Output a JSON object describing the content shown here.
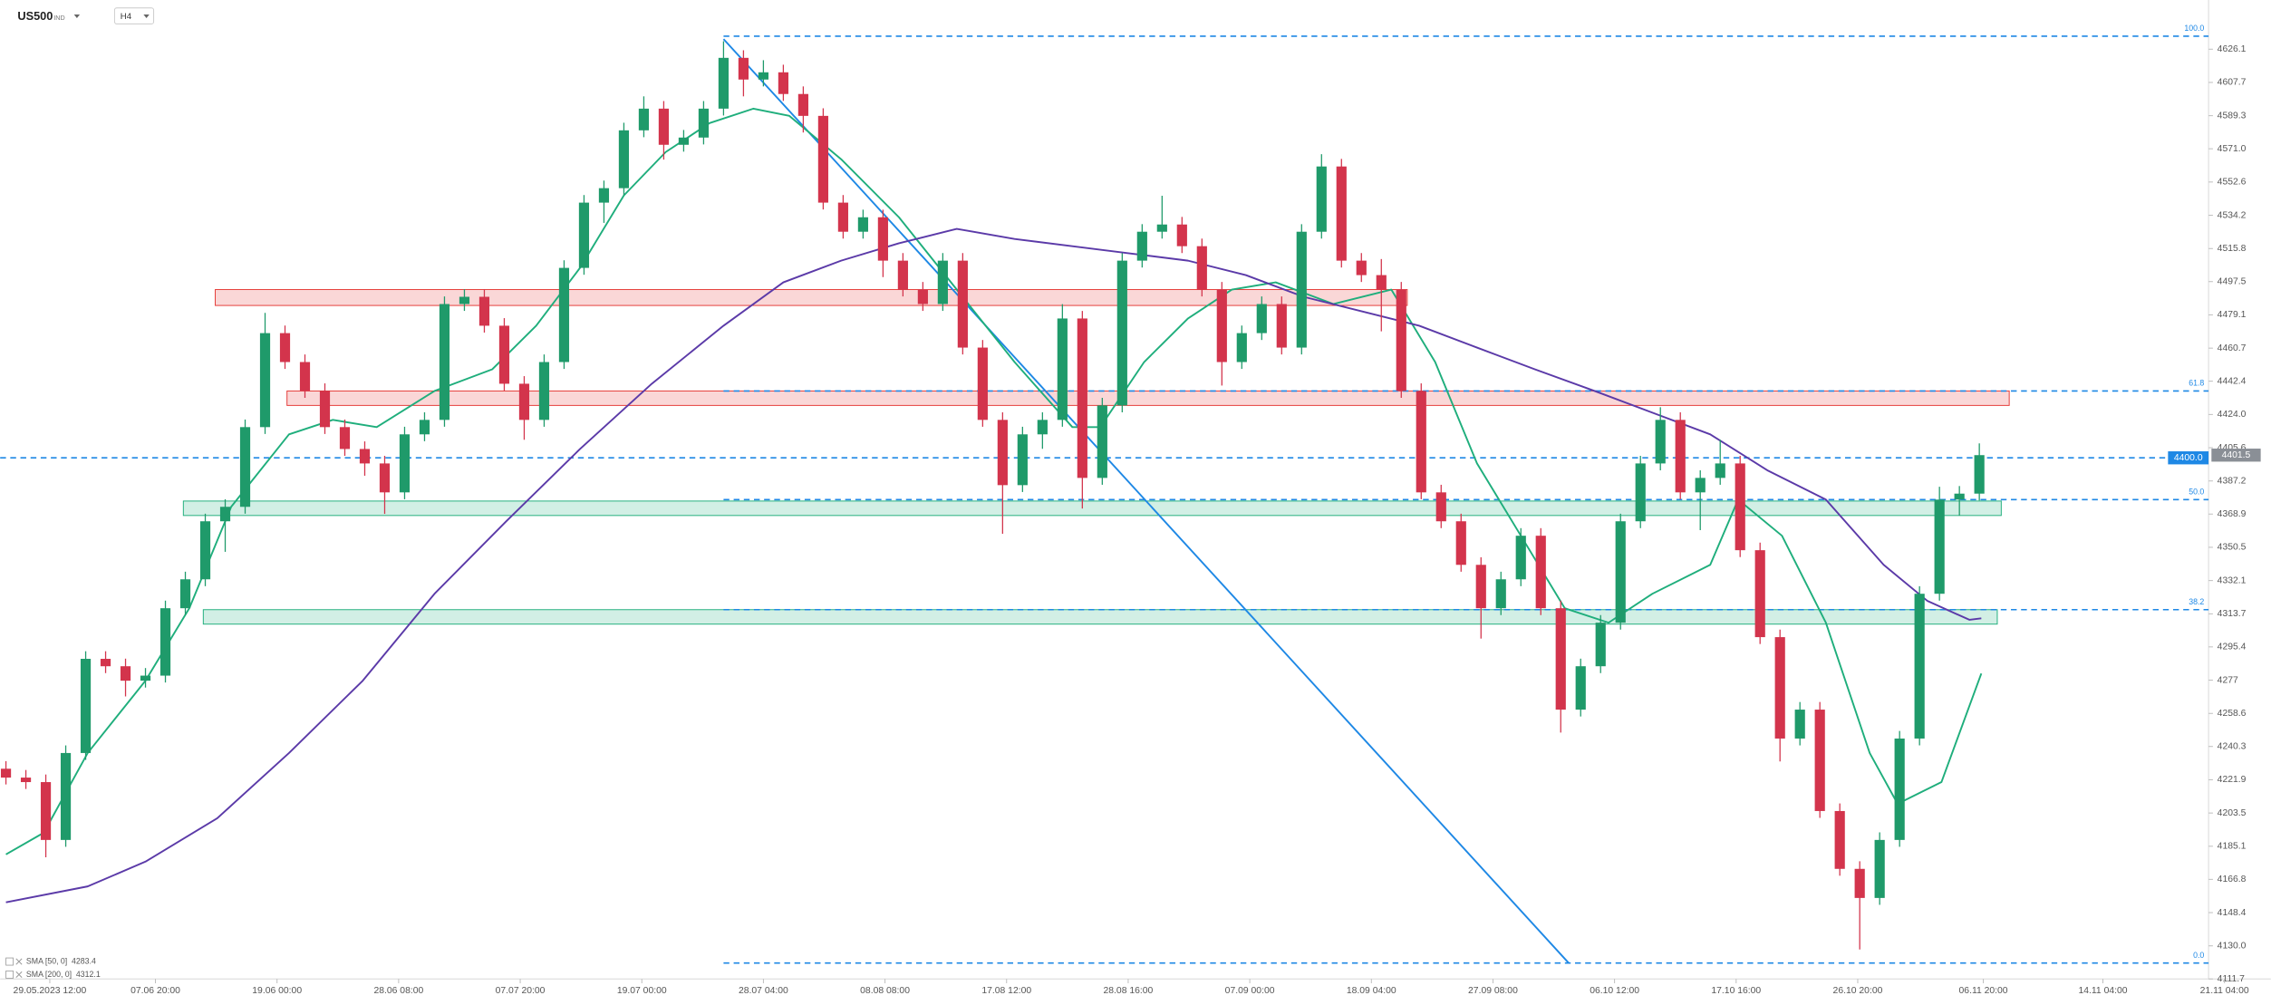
{
  "chart_data": {
    "type": "candlestick",
    "title": "US500",
    "title_suffix": "IND",
    "timeframe": "H4",
    "up_color": "#1f9a6a",
    "down_color": "#d3344c",
    "xlim": [
      -0.29,
      110.5
    ],
    "ylim": [
      4111.7,
      4649.3
    ],
    "yticks": [
      4626.1,
      4607.7,
      4589.3,
      {
        "value": 4571,
        "label": "4571.0"
      },
      4552.6,
      4534.2,
      4515.8,
      4497.5,
      4479.1,
      4460.7,
      4442.4,
      {
        "value": 4424,
        "label": "4424.0"
      },
      4405.6,
      4387.2,
      4368.9,
      4350.5,
      4332.1,
      4313.7,
      4295.4,
      4277,
      4258.6,
      4240.3,
      4221.9,
      4203.5,
      4185.1,
      4166.8,
      4148.4,
      {
        "value": 4130,
        "label": "4130.0"
      },
      4111.7
    ],
    "xticks": [
      {
        "value": 2.2,
        "label": "29.05.2023 12:00"
      },
      {
        "value": 7.5,
        "label": "07.06 20:00"
      },
      {
        "value": 13.6,
        "label": "19.06 00:00"
      },
      {
        "value": 19.7,
        "label": "28.06 08:00"
      },
      {
        "value": 25.8,
        "label": "07.07 20:00"
      },
      {
        "value": 31.9,
        "label": "19.07 00:00"
      },
      {
        "value": 38.0,
        "label": "28.07 04:00"
      },
      {
        "value": 44.1,
        "label": "08.08 08:00"
      },
      {
        "value": 50.2,
        "label": "17.08 12:00"
      },
      {
        "value": 56.3,
        "label": "28.08 16:00"
      },
      {
        "value": 62.4,
        "label": "07.09 00:00"
      },
      {
        "value": 68.5,
        "label": "18.09 04:00"
      },
      {
        "value": 74.6,
        "label": "27.09 08:00"
      },
      {
        "value": 80.7,
        "label": "06.10 12:00"
      },
      {
        "value": 86.8,
        "label": "17.10 16:00"
      },
      {
        "value": 92.9,
        "label": "26.10 20:00"
      },
      {
        "value": 99.2,
        "label": "06.11 20:00"
      },
      {
        "value": 105.2,
        "label": "14.11 04:00"
      },
      {
        "value": 111.3,
        "label": "21.11 04:00"
      }
    ],
    "open": [
      4228.0,
      4223.1,
      4220.6,
      4188.6,
      4236.7,
      4288.8,
      4284.7,
      4276.7,
      4279.5,
      4316.8,
      4332.8,
      4364.9,
      4372.9,
      4417.0,
      4469.0,
      4453.0,
      4437.0,
      4417.0,
      4404.9,
      4396.9,
      4380.9,
      4413.0,
      4421.0,
      4485.1,
      4489.1,
      4473.1,
      4441.0,
      4421.0,
      4453.0,
      4505.1,
      4541.2,
      4549.2,
      4581.2,
      4593.2,
      4573.2,
      4577.2,
      4593.2,
      4621.3,
      4609.3,
      4613.3,
      4601.3,
      4589.2,
      4541.2,
      4525.1,
      4533.1,
      4509.1,
      4493.1,
      4485.1,
      4509.1,
      4461.0,
      4421.0,
      4384.9,
      4413.0,
      4421.0,
      4477.1,
      4388.9,
      4429.0,
      4509.1,
      4525.1,
      4529.1,
      4517.1,
      4493.1,
      4453.0,
      4469.0,
      4485.1,
      4461.0,
      4525.1,
      4561.2,
      4509.1,
      4501.1,
      4493.1,
      4437.0,
      4380.9,
      4364.9,
      4340.8,
      4316.8,
      4332.8,
      4356.9,
      4316.8,
      4260.7,
      4284.7,
      4308.8,
      4364.9,
      4396.9,
      4421.0,
      4380.9,
      4388.9,
      4396.9,
      4348.9,
      4300.8,
      4244.7,
      4260.7,
      4204.6,
      4172.6,
      4156.5,
      4188.6,
      4244.7,
      4324.8,
      4376.9,
      4380.2
    ],
    "high": [
      4232.2,
      4227.3,
      4224.8,
      4240.9,
      4293.0,
      4293.0,
      4288.9,
      4283.7,
      4321.0,
      4337.0,
      4369.1,
      4377.1,
      4421.2,
      4480.2,
      4473.2,
      4457.2,
      4441.2,
      4421.2,
      4409.1,
      4401.1,
      4417.2,
      4425.2,
      4489.3,
      4493.3,
      4493.3,
      4477.3,
      4445.2,
      4457.2,
      4509.3,
      4545.4,
      4553.4,
      4585.4,
      4600.0,
      4597.4,
      4581.4,
      4597.4,
      4630.5,
      4625.5,
      4620.0,
      4617.5,
      4605.5,
      4593.4,
      4545.4,
      4537.3,
      4537.3,
      4513.3,
      4497.3,
      4513.3,
      4513.3,
      4465.2,
      4425.2,
      4417.2,
      4425.2,
      4485.0,
      4481.3,
      4433.2,
      4513.3,
      4529.3,
      4545.0,
      4533.3,
      4521.3,
      4497.3,
      4473.2,
      4489.3,
      4489.3,
      4529.3,
      4568.0,
      4565.4,
      4513.3,
      4510.0,
      4497.3,
      4441.2,
      4385.1,
      4369.1,
      4345.0,
      4337.0,
      4361.1,
      4361.1,
      4321.0,
      4288.9,
      4313.0,
      4369.1,
      4401.1,
      4428.0,
      4425.2,
      4393.1,
      4410.0,
      4401.1,
      4353.1,
      4305.0,
      4264.9,
      4264.9,
      4208.8,
      4176.8,
      4192.8,
      4248.9,
      4329.0,
      4384.0,
      4384.4,
      4408.0
    ],
    "low": [
      4219.3,
      4216.8,
      4179.0,
      4184.8,
      4232.9,
      4280.9,
      4268.0,
      4272.9,
      4275.7,
      4313.0,
      4329.0,
      4348.0,
      4369.1,
      4413.2,
      4449.2,
      4433.2,
      4413.2,
      4401.1,
      4390.1,
      4369.0,
      4377.1,
      4409.2,
      4417.2,
      4481.3,
      4469.3,
      4437.2,
      4410.0,
      4417.2,
      4449.2,
      4501.3,
      4530.0,
      4545.4,
      4577.4,
      4565.0,
      4569.4,
      4573.4,
      4589.4,
      4600.0,
      4605.5,
      4597.5,
      4580.0,
      4537.4,
      4521.3,
      4521.3,
      4500.0,
      4489.3,
      4481.3,
      4481.3,
      4457.2,
      4417.2,
      4358.0,
      4381.1,
      4405.0,
      4417.2,
      4372.0,
      4385.1,
      4425.2,
      4505.3,
      4521.3,
      4513.3,
      4489.3,
      4440.0,
      4449.2,
      4465.2,
      4457.2,
      4457.2,
      4521.3,
      4505.3,
      4497.3,
      4470.0,
      4433.2,
      4377.1,
      4361.1,
      4337.0,
      4300.0,
      4313.0,
      4329.0,
      4313.0,
      4248.0,
      4256.9,
      4280.9,
      4305.0,
      4361.1,
      4393.1,
      4377.1,
      4360.0,
      4385.1,
      4345.1,
      4297.0,
      4232.0,
      4240.9,
      4200.8,
      4168.8,
      4128.0,
      4152.7,
      4184.8,
      4240.9,
      4321.0,
      4368.0,
      4376.4
    ],
    "close": [
      4223.1,
      4220.6,
      4188.6,
      4236.7,
      4288.8,
      4284.7,
      4276.7,
      4279.5,
      4316.8,
      4332.8,
      4364.9,
      4372.9,
      4417.0,
      4469.0,
      4453.0,
      4437.0,
      4417.0,
      4404.9,
      4396.9,
      4380.9,
      4413.0,
      4421.0,
      4485.1,
      4489.1,
      4473.1,
      4441.0,
      4421.0,
      4453.0,
      4505.1,
      4541.2,
      4549.2,
      4581.2,
      4593.2,
      4573.2,
      4577.2,
      4593.2,
      4621.3,
      4609.3,
      4613.3,
      4601.3,
      4589.2,
      4541.2,
      4525.1,
      4533.1,
      4509.1,
      4493.1,
      4485.1,
      4509.1,
      4461.0,
      4421.0,
      4384.9,
      4413.0,
      4421.0,
      4477.1,
      4388.9,
      4429.0,
      4509.1,
      4525.1,
      4529.1,
      4517.1,
      4493.1,
      4453.0,
      4469.0,
      4485.1,
      4461.0,
      4525.1,
      4561.2,
      4509.1,
      4501.1,
      4493.1,
      4437.0,
      4380.9,
      4364.9,
      4340.8,
      4316.8,
      4332.8,
      4356.9,
      4316.8,
      4260.7,
      4284.7,
      4308.8,
      4364.9,
      4396.9,
      4421.0,
      4380.9,
      4388.9,
      4396.9,
      4348.9,
      4300.8,
      4244.7,
      4260.7,
      4204.6,
      4172.6,
      4156.5,
      4188.6,
      4244.7,
      4324.8,
      4376.9,
      4380.2,
      4401.5
    ],
    "indicators": [
      {
        "name": "SMA [50, 0]",
        "last": 4283.4,
        "color": "#1fae7c",
        "x": [
          0,
          1.9,
          4.1,
          7.0,
          9.2,
          11.3,
          14.2,
          16.4,
          18.6,
          21.5,
          24.4,
          26.6,
          28.8,
          31.0,
          33.1,
          35.3,
          37.5,
          39.3,
          41.9,
          44.8,
          47.7,
          50.6,
          53.5,
          54.9,
          57.1,
          59.3,
          61.5,
          63.7,
          66.6,
          69.5,
          71.7,
          73.8,
          76.0,
          78.2,
          80.4,
          82.6,
          85.5,
          86.9,
          89.1,
          91.3,
          93.5,
          94.9,
          97.1,
          99.1
        ],
        "values": [
          4180.6,
          4192.6,
          4236.7,
          4276.7,
          4316.8,
          4372.9,
          4413.0,
          4421.0,
          4417.0,
          4437.0,
          4449.0,
          4473.1,
          4505.1,
          4545.2,
          4569.2,
          4585.2,
          4593.2,
          4589.2,
          4565.2,
          4533.1,
          4493.1,
          4453.0,
          4417.0,
          4417.0,
          4453.0,
          4477.1,
          4493.1,
          4497.1,
          4485.1,
          4493.1,
          4453.0,
          4396.9,
          4356.9,
          4316.8,
          4308.8,
          4324.8,
          4340.8,
          4376.9,
          4356.9,
          4308.8,
          4236.7,
          4208.6,
          4220.6,
          4280.7
        ]
      },
      {
        "name": "SMA [200, 0]",
        "last": 4312.1,
        "color": "#5b3aa8",
        "x": [
          0,
          4.1,
          7.0,
          10.6,
          14.2,
          17.9,
          21.5,
          25.1,
          28.8,
          32.4,
          36.0,
          39.0,
          41.9,
          44.8,
          47.7,
          50.6,
          53.5,
          56.4,
          59.3,
          62.2,
          65.1,
          68.0,
          70.9,
          73.8,
          76.7,
          79.7,
          82.6,
          85.5,
          88.4,
          91.3,
          94.2,
          96.4,
          98.5,
          99.1
        ],
        "values": [
          4154.1,
          4162.9,
          4176.6,
          4200.6,
          4236.7,
          4276.7,
          4324.8,
          4364.9,
          4404.9,
          4441.0,
          4473.1,
          4497.1,
          4509.1,
          4518.7,
          4526.7,
          4521.1,
          4517.1,
          4513.1,
          4509.1,
          4501.1,
          4489.1,
          4481.1,
          4473.1,
          4461.0,
          4449.0,
          4437.0,
          4425.0,
          4413.0,
          4392.9,
          4376.9,
          4340.8,
          4320.8,
          4310.4,
          4311.2
        ]
      }
    ],
    "zones": [
      {
        "color": "#e53935",
        "x": [
          10.5,
          70.3
        ],
        "y": [
          4484.3,
          4493.1
        ]
      },
      {
        "color": "#e53935",
        "x": [
          14.1,
          100.5
        ],
        "y": [
          4429.0,
          4437.0
        ]
      },
      {
        "color": "#1fae7c",
        "x": [
          8.9,
          100.1
        ],
        "y": [
          4368.1,
          4376.1
        ]
      },
      {
        "color": "#1fae7c",
        "x": [
          9.9,
          99.9
        ],
        "y": [
          4308.0,
          4316.0
        ]
      }
    ],
    "fib_color": "#1e88e5",
    "fib_levels": [
      {
        "label": "100.0",
        "value": 4633.3,
        "x_start": 36.0
      },
      {
        "label": "61.8",
        "value": 4437.0,
        "x_start": 36.0
      },
      {
        "label": "50.0",
        "value": 4376.9,
        "x_start": 36.0
      },
      {
        "label": "38.2",
        "value": 4316.0,
        "x_start": 36.0
      },
      {
        "label": "0.0",
        "value": 4120.5,
        "x_start": 36.0
      }
    ],
    "trendline": {
      "x": [
        36.0,
        78.4
      ],
      "values": [
        4631.7,
        4120.5
      ]
    },
    "level": {
      "value": 4400,
      "label": "4400.0"
    },
    "last_price": 4401.5
  }
}
